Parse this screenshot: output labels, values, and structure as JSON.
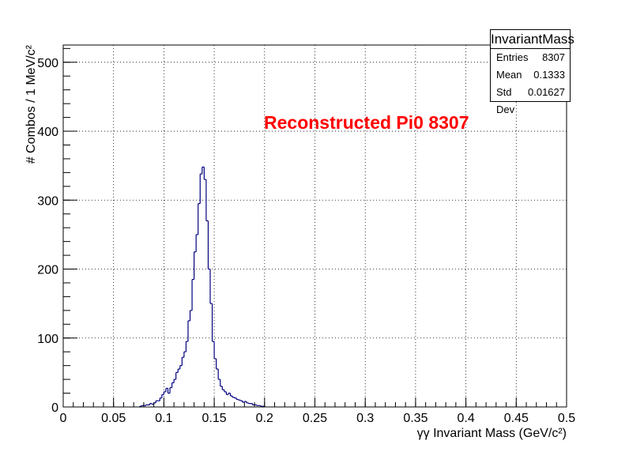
{
  "chart_data": {
    "type": "histogram",
    "title": "",
    "xlabel": "γγ Invariant Mass (GeV/c²)",
    "ylabel": "# Combos / 1 MeV/c²",
    "xlim": [
      0,
      0.5
    ],
    "ylim": [
      0,
      525
    ],
    "bin_width": 0.002,
    "grid": true,
    "x_ticks": [
      "0",
      "0.05",
      "0.1",
      "0.15",
      "0.2",
      "0.25",
      "0.3",
      "0.35",
      "0.4",
      "0.45",
      "0.5"
    ],
    "y_ticks": [
      "0",
      "100",
      "200",
      "300",
      "400",
      "500"
    ],
    "line_color": "#000080",
    "bins": [
      [
        0.076,
        1
      ],
      [
        0.078,
        2
      ],
      [
        0.08,
        2
      ],
      [
        0.082,
        3
      ],
      [
        0.084,
        3
      ],
      [
        0.086,
        5
      ],
      [
        0.088,
        4
      ],
      [
        0.09,
        6
      ],
      [
        0.092,
        9
      ],
      [
        0.094,
        9
      ],
      [
        0.096,
        13
      ],
      [
        0.098,
        18
      ],
      [
        0.1,
        22
      ],
      [
        0.102,
        27
      ],
      [
        0.104,
        20
      ],
      [
        0.106,
        28
      ],
      [
        0.108,
        35
      ],
      [
        0.11,
        40
      ],
      [
        0.112,
        50
      ],
      [
        0.114,
        55
      ],
      [
        0.116,
        60
      ],
      [
        0.118,
        72
      ],
      [
        0.12,
        80
      ],
      [
        0.122,
        95
      ],
      [
        0.124,
        125
      ],
      [
        0.126,
        140
      ],
      [
        0.128,
        185
      ],
      [
        0.13,
        225
      ],
      [
        0.132,
        250
      ],
      [
        0.134,
        295
      ],
      [
        0.136,
        338
      ],
      [
        0.138,
        348
      ],
      [
        0.14,
        330
      ],
      [
        0.142,
        270
      ],
      [
        0.144,
        200
      ],
      [
        0.146,
        150
      ],
      [
        0.148,
        95
      ],
      [
        0.15,
        70
      ],
      [
        0.152,
        55
      ],
      [
        0.154,
        40
      ],
      [
        0.156,
        30
      ],
      [
        0.158,
        25
      ],
      [
        0.16,
        22
      ],
      [
        0.162,
        18
      ],
      [
        0.164,
        20
      ],
      [
        0.166,
        16
      ],
      [
        0.168,
        14
      ],
      [
        0.17,
        13
      ],
      [
        0.172,
        11
      ],
      [
        0.174,
        10
      ],
      [
        0.176,
        9
      ],
      [
        0.178,
        7
      ],
      [
        0.18,
        8
      ],
      [
        0.182,
        6
      ],
      [
        0.184,
        5
      ],
      [
        0.186,
        5
      ],
      [
        0.188,
        3
      ],
      [
        0.19,
        3
      ],
      [
        0.192,
        2
      ],
      [
        0.194,
        2
      ],
      [
        0.196,
        1
      ],
      [
        0.198,
        1
      ]
    ],
    "annotation": "Reconstructed Pi0 8307",
    "annotation_color": "#ff0000",
    "stats": {
      "title": "InvariantMass",
      "rows": [
        {
          "label": "Entries",
          "value": "8307"
        },
        {
          "label": "Mean",
          "value": "0.1333"
        },
        {
          "label": "Std Dev",
          "value": "0.01627"
        }
      ]
    }
  }
}
